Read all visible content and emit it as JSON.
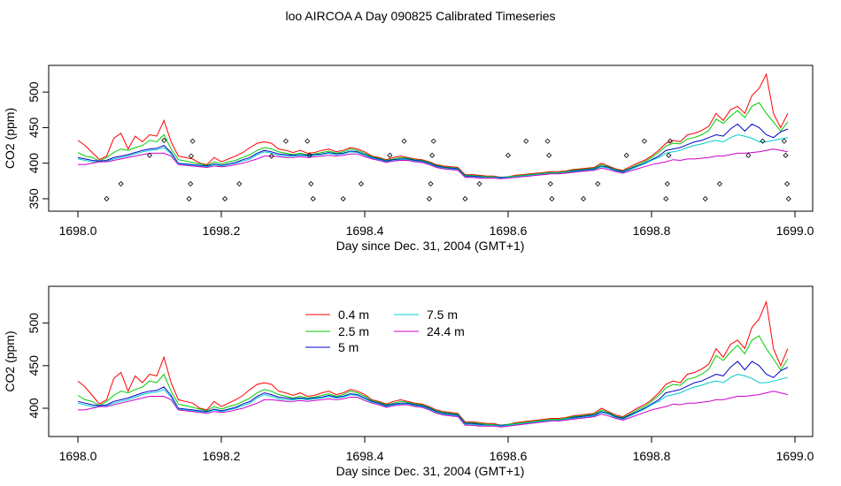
{
  "title": "loo AIRCOA A  Day 090825  Calibrated Timeseries",
  "chart_data": [
    {
      "type": "line",
      "xlabel": "Day since Dec. 31, 2004 (GMT+1)",
      "ylabel": "CO2 (ppm)",
      "xlim": [
        1698.0,
        1699.0
      ],
      "ylim": [
        340,
        530
      ],
      "x_ticks": [
        "1698.0",
        "1698.2",
        "1698.4",
        "1698.6",
        "1698.8",
        "1699.0"
      ],
      "y_ticks": [
        "350",
        "400",
        "450",
        "500"
      ],
      "x": [
        1698.0,
        1698.01,
        1698.02,
        1698.03,
        1698.04,
        1698.05,
        1698.06,
        1698.07,
        1698.08,
        1698.09,
        1698.1,
        1698.11,
        1698.12,
        1698.13,
        1698.14,
        1698.15,
        1698.16,
        1698.17,
        1698.18,
        1698.19,
        1698.2,
        1698.21,
        1698.22,
        1698.23,
        1698.24,
        1698.25,
        1698.26,
        1698.27,
        1698.28,
        1698.29,
        1698.3,
        1698.31,
        1698.32,
        1698.33,
        1698.34,
        1698.35,
        1698.36,
        1698.37,
        1698.38,
        1698.39,
        1698.4,
        1698.41,
        1698.42,
        1698.43,
        1698.44,
        1698.45,
        1698.46,
        1698.47,
        1698.48,
        1698.49,
        1698.5,
        1698.51,
        1698.52,
        1698.53,
        1698.54,
        1698.55,
        1698.56,
        1698.57,
        1698.58,
        1698.59,
        1698.6,
        1698.61,
        1698.62,
        1698.63,
        1698.64,
        1698.65,
        1698.66,
        1698.67,
        1698.68,
        1698.69,
        1698.7,
        1698.71,
        1698.72,
        1698.73,
        1698.74,
        1698.75,
        1698.76,
        1698.77,
        1698.78,
        1698.79,
        1698.8,
        1698.81,
        1698.82,
        1698.83,
        1698.84,
        1698.85,
        1698.86,
        1698.87,
        1698.88,
        1698.89,
        1698.9,
        1698.91,
        1698.92,
        1698.93,
        1698.94,
        1698.95,
        1698.96,
        1698.97,
        1698.98,
        1698.99
      ],
      "series": [
        {
          "name": "0.4 m",
          "color": "#ff0000",
          "values": [
            432,
            425,
            415,
            405,
            410,
            435,
            442,
            420,
            438,
            430,
            440,
            438,
            460,
            430,
            410,
            408,
            406,
            400,
            398,
            408,
            402,
            406,
            410,
            415,
            422,
            428,
            430,
            428,
            420,
            418,
            415,
            418,
            414,
            415,
            418,
            420,
            416,
            418,
            422,
            420,
            416,
            410,
            408,
            405,
            408,
            410,
            408,
            406,
            405,
            402,
            398,
            396,
            395,
            394,
            384,
            384,
            383,
            382,
            382,
            380,
            381,
            383,
            384,
            385,
            386,
            387,
            388,
            388,
            389,
            391,
            392,
            393,
            394,
            400,
            396,
            392,
            390,
            395,
            400,
            404,
            410,
            418,
            428,
            432,
            430,
            440,
            442,
            446,
            452,
            470,
            460,
            475,
            480,
            470,
            495,
            505,
            525,
            470,
            450,
            470
          ]
        },
        {
          "name": "2.5 m",
          "color": "#00cc00",
          "values": [
            415,
            410,
            408,
            403,
            408,
            415,
            420,
            418,
            422,
            425,
            432,
            430,
            440,
            420,
            405,
            403,
            401,
            399,
            397,
            402,
            399,
            402,
            404,
            408,
            412,
            418,
            422,
            420,
            416,
            414,
            412,
            414,
            412,
            413,
            415,
            417,
            414,
            416,
            420,
            418,
            414,
            409,
            407,
            404,
            406,
            408,
            407,
            405,
            404,
            401,
            397,
            395,
            394,
            393,
            383,
            383,
            382,
            381,
            381,
            380,
            381,
            382,
            383,
            384,
            385,
            386,
            387,
            387,
            388,
            390,
            391,
            392,
            393,
            398,
            395,
            391,
            389,
            393,
            398,
            402,
            408,
            415,
            424,
            428,
            427,
            434,
            436,
            440,
            446,
            462,
            456,
            466,
            474,
            464,
            480,
            485,
            470,
            458,
            445,
            458
          ]
        },
        {
          "name": "5 m",
          "color": "#0000cc",
          "values": [
            408,
            406,
            404,
            403,
            404,
            408,
            410,
            412,
            415,
            418,
            420,
            421,
            425,
            415,
            400,
            399,
            398,
            397,
            396,
            399,
            397,
            399,
            401,
            405,
            408,
            414,
            418,
            416,
            413,
            412,
            411,
            412,
            411,
            412,
            413,
            415,
            413,
            414,
            417,
            416,
            412,
            408,
            406,
            403,
            405,
            406,
            406,
            404,
            403,
            400,
            396,
            394,
            393,
            392,
            382,
            382,
            381,
            380,
            380,
            380,
            380,
            381,
            382,
            383,
            384,
            385,
            386,
            386,
            387,
            389,
            390,
            391,
            392,
            396,
            394,
            390,
            388,
            392,
            396,
            400,
            405,
            410,
            418,
            420,
            422,
            426,
            430,
            432,
            436,
            440,
            438,
            448,
            455,
            445,
            455,
            450,
            440,
            436,
            444,
            448
          ]
        },
        {
          "name": "7.5 m",
          "color": "#00cccc",
          "values": [
            406,
            404,
            402,
            402,
            403,
            406,
            408,
            410,
            413,
            416,
            418,
            419,
            422,
            413,
            399,
            398,
            397,
            396,
            395,
            398,
            396,
            398,
            400,
            403,
            406,
            412,
            416,
            414,
            411,
            410,
            410,
            411,
            410,
            411,
            412,
            414,
            412,
            413,
            416,
            415,
            411,
            407,
            405,
            402,
            404,
            405,
            405,
            403,
            402,
            399,
            395,
            393,
            392,
            391,
            381,
            381,
            380,
            380,
            380,
            379,
            380,
            381,
            382,
            383,
            384,
            385,
            386,
            386,
            387,
            388,
            389,
            390,
            391,
            395,
            393,
            389,
            387,
            391,
            395,
            399,
            404,
            408,
            414,
            416,
            418,
            422,
            425,
            427,
            430,
            432,
            430,
            436,
            440,
            438,
            435,
            430,
            430,
            432,
            434,
            436
          ]
        },
        {
          "name": "24.4 m",
          "color": "#cc00cc",
          "values": [
            398,
            398,
            400,
            402,
            402,
            404,
            406,
            408,
            410,
            412,
            414,
            414,
            414,
            410,
            398,
            397,
            396,
            395,
            394,
            396,
            395,
            396,
            398,
            400,
            403,
            406,
            410,
            410,
            409,
            408,
            408,
            409,
            408,
            409,
            410,
            411,
            410,
            411,
            413,
            413,
            409,
            406,
            404,
            401,
            403,
            404,
            404,
            402,
            401,
            398,
            394,
            392,
            391,
            390,
            380,
            380,
            379,
            379,
            379,
            378,
            379,
            380,
            381,
            382,
            383,
            384,
            385,
            385,
            386,
            387,
            388,
            389,
            390,
            393,
            391,
            388,
            386,
            389,
            392,
            395,
            398,
            400,
            402,
            405,
            404,
            406,
            406,
            407,
            408,
            410,
            410,
            412,
            414,
            414,
            415,
            416,
            418,
            420,
            418,
            416
          ]
        }
      ],
      "markers": [
        {
          "x": 1698.04,
          "y": 350
        },
        {
          "x": 1698.06,
          "y": 371
        },
        {
          "x": 1698.1,
          "y": 411
        },
        {
          "x": 1698.12,
          "y": 432
        },
        {
          "x": 1698.155,
          "y": 350
        },
        {
          "x": 1698.157,
          "y": 371
        },
        {
          "x": 1698.158,
          "y": 410
        },
        {
          "x": 1698.16,
          "y": 431
        },
        {
          "x": 1698.205,
          "y": 350
        },
        {
          "x": 1698.225,
          "y": 371
        },
        {
          "x": 1698.27,
          "y": 410
        },
        {
          "x": 1698.29,
          "y": 431
        },
        {
          "x": 1698.32,
          "y": 431
        },
        {
          "x": 1698.323,
          "y": 411
        },
        {
          "x": 1698.325,
          "y": 371
        },
        {
          "x": 1698.328,
          "y": 350
        },
        {
          "x": 1698.37,
          "y": 350
        },
        {
          "x": 1698.395,
          "y": 371
        },
        {
          "x": 1698.435,
          "y": 411
        },
        {
          "x": 1698.455,
          "y": 431
        },
        {
          "x": 1698.49,
          "y": 350
        },
        {
          "x": 1698.492,
          "y": 371
        },
        {
          "x": 1698.494,
          "y": 411
        },
        {
          "x": 1698.496,
          "y": 431
        },
        {
          "x": 1698.54,
          "y": 350
        },
        {
          "x": 1698.56,
          "y": 371
        },
        {
          "x": 1698.6,
          "y": 411
        },
        {
          "x": 1698.625,
          "y": 431
        },
        {
          "x": 1698.655,
          "y": 431
        },
        {
          "x": 1698.657,
          "y": 411
        },
        {
          "x": 1698.659,
          "y": 371
        },
        {
          "x": 1698.661,
          "y": 350
        },
        {
          "x": 1698.705,
          "y": 350
        },
        {
          "x": 1698.725,
          "y": 371
        },
        {
          "x": 1698.765,
          "y": 411
        },
        {
          "x": 1698.79,
          "y": 431
        },
        {
          "x": 1698.82,
          "y": 350
        },
        {
          "x": 1698.822,
          "y": 371
        },
        {
          "x": 1698.824,
          "y": 411
        },
        {
          "x": 1698.826,
          "y": 431
        },
        {
          "x": 1698.875,
          "y": 350
        },
        {
          "x": 1698.895,
          "y": 371
        },
        {
          "x": 1698.935,
          "y": 411
        },
        {
          "x": 1698.955,
          "y": 431
        },
        {
          "x": 1698.985,
          "y": 431
        },
        {
          "x": 1698.987,
          "y": 411
        },
        {
          "x": 1698.989,
          "y": 371
        },
        {
          "x": 1698.991,
          "y": 350
        }
      ]
    },
    {
      "type": "line",
      "xlabel": "Day since Dec. 31, 2004 (GMT+1)",
      "ylabel": "CO2 (ppm)",
      "xlim": [
        1698.0,
        1699.0
      ],
      "ylim": [
        373,
        537
      ],
      "x_ticks": [
        "1698.0",
        "1698.2",
        "1698.4",
        "1698.6",
        "1698.8",
        "1699.0"
      ],
      "y_ticks": [
        "400",
        "450",
        "500"
      ],
      "legend": {
        "placement": "top-center",
        "items": [
          "0.4 m",
          "2.5 m",
          "5 m",
          "7.5 m",
          "24.4 m"
        ]
      },
      "same_series_as_panel": 0
    }
  ]
}
